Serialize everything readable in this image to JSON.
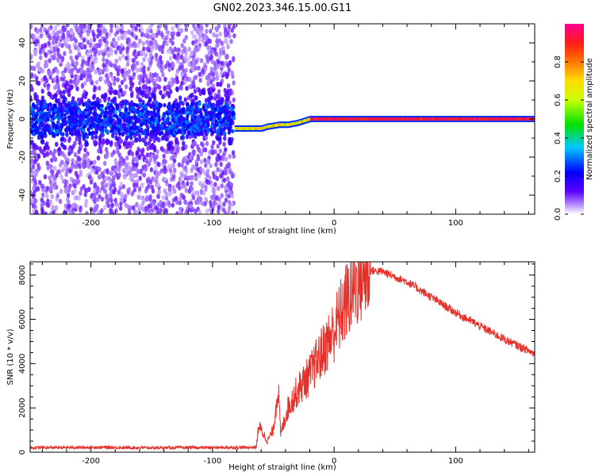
{
  "title": "GN02.2023.346.15.00.G11",
  "colors": {
    "snr_line": "#e8302a",
    "frame": "#000000",
    "colormap": [
      "#ffffff",
      "#d9b8ff",
      "#7a00ff",
      "#1f00ff",
      "#00c8ff",
      "#00e000",
      "#ffff00",
      "#ff6a00",
      "#ff1a1a",
      "#ff008c"
    ]
  },
  "chart_data": [
    {
      "type": "heatmap",
      "title": "GN02.2023.346.15.00.G11",
      "xlabel": "Height of straight line (km)",
      "ylabel": "Frequency (Hz)",
      "xlim": [
        -250,
        165
      ],
      "ylim": [
        -50,
        50
      ],
      "x_ticks": [
        -200,
        -100,
        0,
        100
      ],
      "y_ticks": [
        -40,
        -20,
        0,
        20,
        40
      ],
      "colorbar": {
        "label": "Normalized spectral amplitude",
        "range": [
          0,
          1
        ],
        "ticks": [
          "0.0",
          "0.2",
          "0.4",
          "0.6",
          "0.8"
        ],
        "tick_values": [
          0.0,
          0.2,
          0.4,
          0.6,
          0.8
        ]
      },
      "noise_region_end_km": -82,
      "carrier_track": [
        {
          "x": -82,
          "f": -5
        },
        {
          "x": -60,
          "f": -5
        },
        {
          "x": -55,
          "f": -4
        },
        {
          "x": -45,
          "f": -3
        },
        {
          "x": -38,
          "f": -3
        },
        {
          "x": -30,
          "f": -2
        },
        {
          "x": -20,
          "f": 0
        },
        {
          "x": 0,
          "f": 0
        },
        {
          "x": 165,
          "f": 0
        }
      ]
    },
    {
      "type": "line",
      "xlabel": "Height of straight line (km)",
      "ylabel": "SNR (10 * v/v)",
      "xlim": [
        -250,
        165
      ],
      "ylim": [
        0,
        8600
      ],
      "x_ticks": [
        -200,
        -100,
        0,
        100
      ],
      "y_ticks": [
        0,
        2000,
        4000,
        6000,
        8000
      ],
      "series": [
        {
          "points": [
            {
              "x": -250,
              "y": 200
            },
            {
              "x": -200,
              "y": 220
            },
            {
              "x": -150,
              "y": 200
            },
            {
              "x": -100,
              "y": 210
            },
            {
              "x": -64,
              "y": 220
            },
            {
              "x": -62,
              "y": 1200
            },
            {
              "x": -55,
              "y": 500
            },
            {
              "x": -50,
              "y": 1000
            },
            {
              "x": -46,
              "y": 3000
            },
            {
              "x": -44,
              "y": 800
            },
            {
              "x": -38,
              "y": 2000
            },
            {
              "x": -30,
              "y": 2800
            },
            {
              "x": -20,
              "y": 3500
            },
            {
              "x": -10,
              "y": 4500
            },
            {
              "x": 0,
              "y": 5500
            },
            {
              "x": 10,
              "y": 6800
            },
            {
              "x": 20,
              "y": 7800
            },
            {
              "x": 30,
              "y": 8200
            },
            {
              "x": 40,
              "y": 8150
            },
            {
              "x": 60,
              "y": 7700
            },
            {
              "x": 80,
              "y": 7000
            },
            {
              "x": 100,
              "y": 6300
            },
            {
              "x": 120,
              "y": 5700
            },
            {
              "x": 140,
              "y": 5100
            },
            {
              "x": 165,
              "y": 4450
            }
          ]
        }
      ]
    }
  ]
}
